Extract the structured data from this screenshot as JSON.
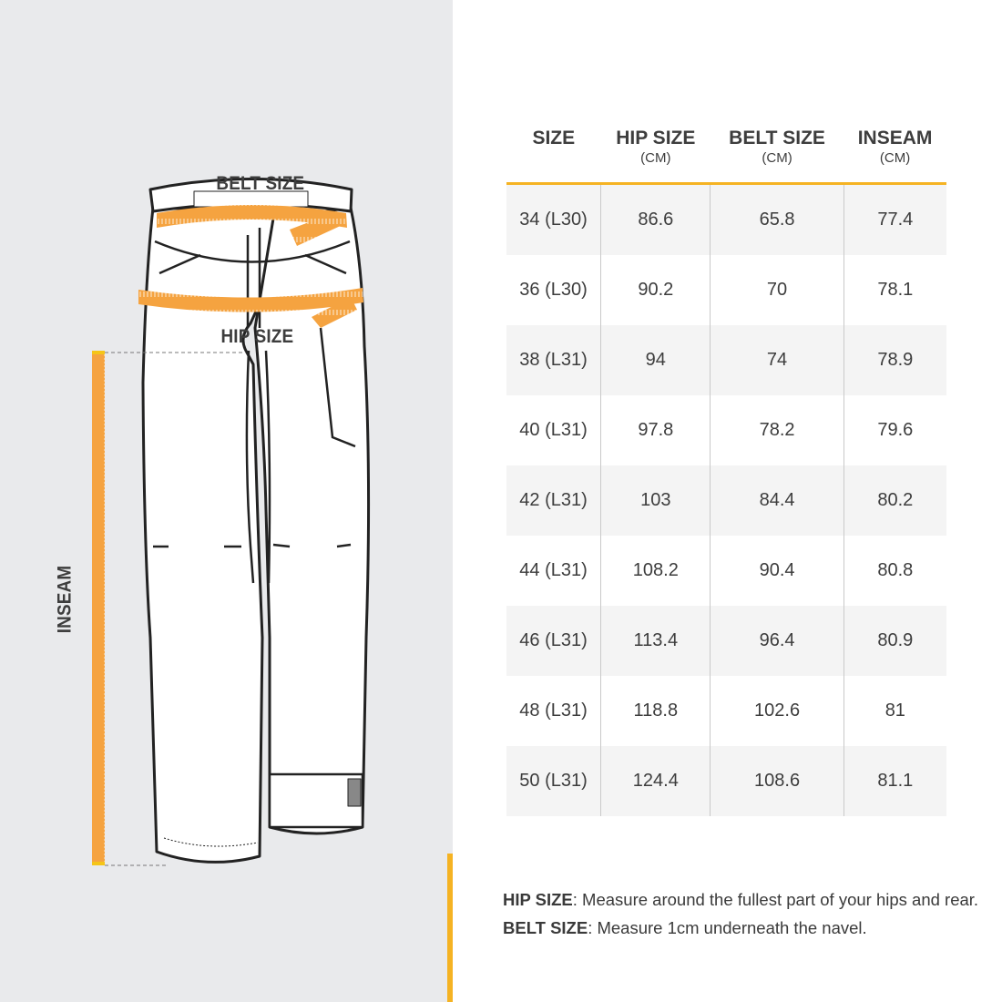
{
  "diagram": {
    "belt_label": "BELT SIZE",
    "hip_label": "HIP SIZE",
    "inseam_label": "INSEAM",
    "colors": {
      "panel": "#e9eaec",
      "tape": "#f5a340",
      "accent": "#f5b323"
    }
  },
  "table": {
    "headers": [
      {
        "title": "SIZE",
        "unit": ""
      },
      {
        "title": "HIP SIZE",
        "unit": "(CM)"
      },
      {
        "title": "BELT SIZE",
        "unit": "(CM)"
      },
      {
        "title": "INSEAM",
        "unit": "(CM)"
      }
    ],
    "rows": [
      [
        "34 (L30)",
        "86.6",
        "65.8",
        "77.4"
      ],
      [
        "36 (L30)",
        "90.2",
        "70",
        "78.1"
      ],
      [
        "38 (L31)",
        "94",
        "74",
        "78.9"
      ],
      [
        "40 (L31)",
        "97.8",
        "78.2",
        "79.6"
      ],
      [
        "42 (L31)",
        "103",
        "84.4",
        "80.2"
      ],
      [
        "44 (L31)",
        "108.2",
        "90.4",
        "80.8"
      ],
      [
        "46 (L31)",
        "113.4",
        "96.4",
        "80.9"
      ],
      [
        "48 (L31)",
        "118.8",
        "102.6",
        "81"
      ],
      [
        "50 (L31)",
        "124.4",
        "108.6",
        "81.1"
      ]
    ]
  },
  "notes": [
    {
      "term": "HIP SIZE",
      "text": ": Measure around the fullest part of your hips and rear."
    },
    {
      "term": "BELT SIZE",
      "text": ": Measure 1cm underneath the navel."
    }
  ]
}
